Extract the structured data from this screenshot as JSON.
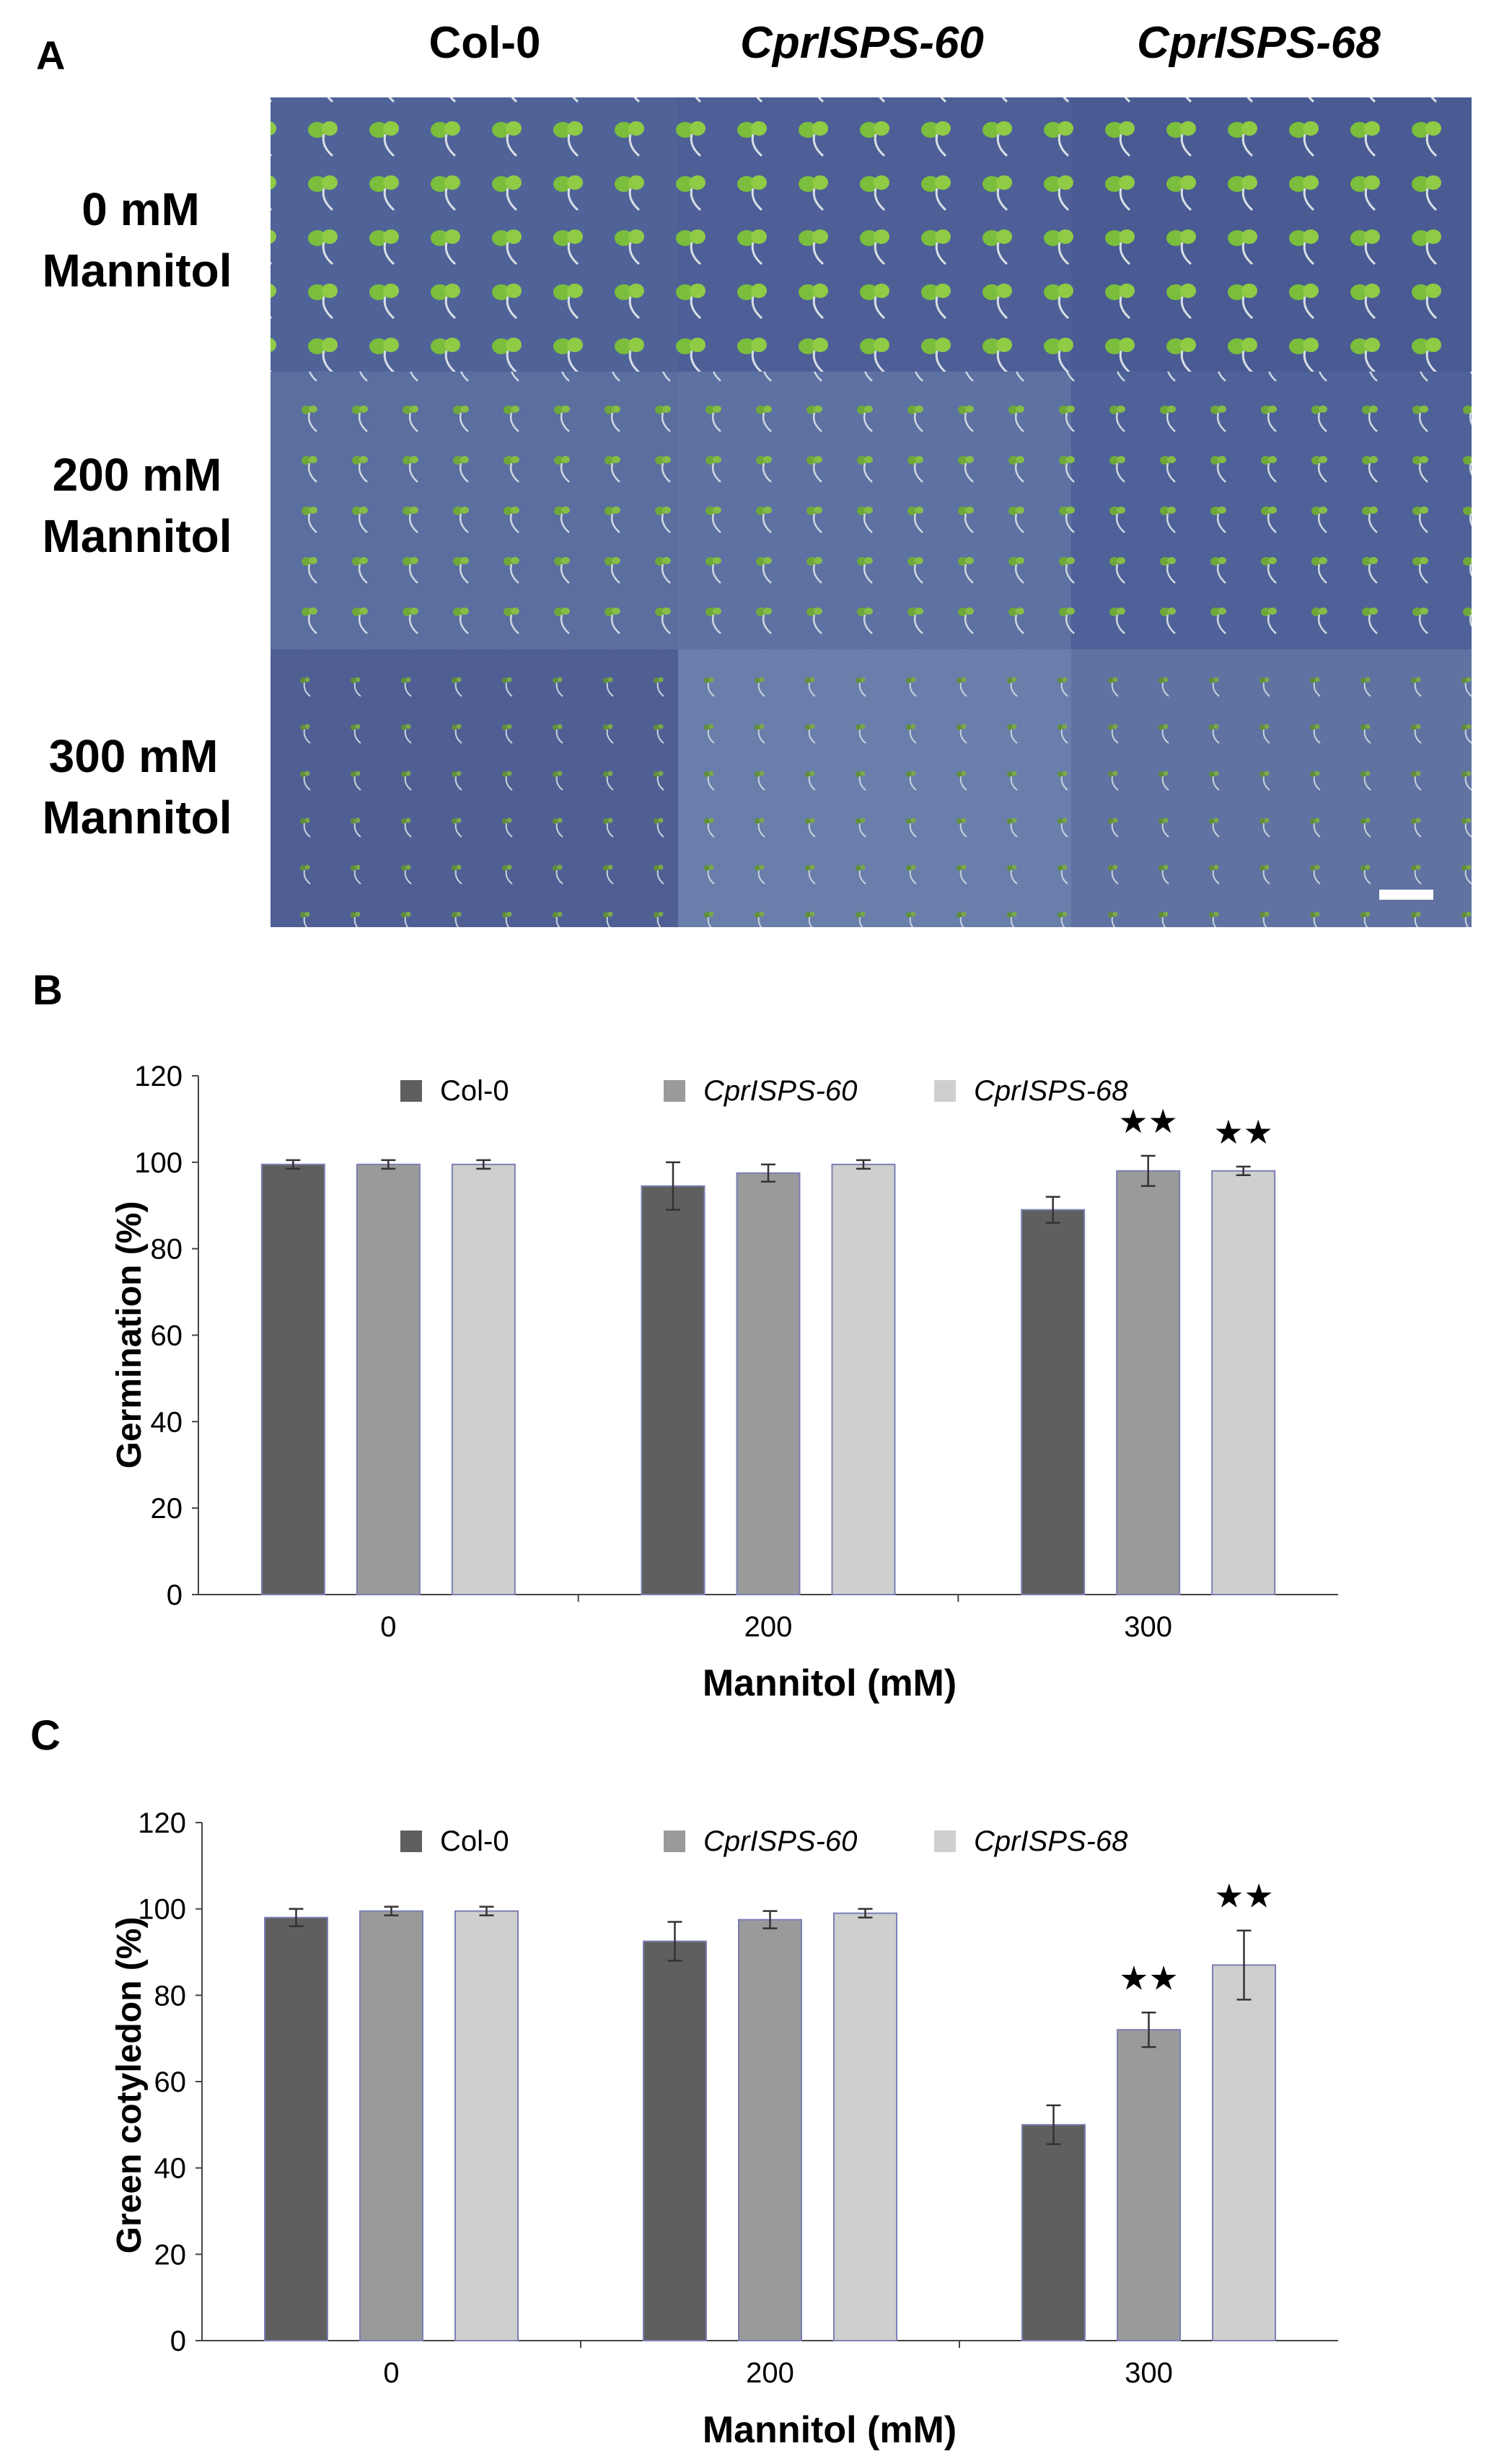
{
  "panel_a": {
    "label": "A",
    "columns": [
      "Col-0",
      "CprISPS-60",
      "CprISPS-68"
    ],
    "rows": [
      {
        "line1": "0 mM",
        "line2": "Mannitol"
      },
      {
        "line1": "200 mM",
        "line2": "Mannitol"
      },
      {
        "line1": "300 mM",
        "line2": "Mannitol"
      }
    ]
  },
  "colors": {
    "col0": "#5f5f5f",
    "cpr60": "#9a9a9a",
    "cpr68": "#cfcfcf",
    "bar_outline": "#7b7fb3",
    "plate_bg": "#506398"
  },
  "chart_data": [
    {
      "panel_label": "B",
      "type": "bar",
      "categories": [
        "0",
        "200",
        "300"
      ],
      "xlabel": "Mannitol (mM)",
      "ylabel": "Germination (%)",
      "ylim": [
        0,
        120
      ],
      "yticks": [
        "0",
        "20",
        "40",
        "60",
        "80",
        "100",
        "120"
      ],
      "legend": "top",
      "series": [
        {
          "name": "Col-0",
          "values": [
            99.5,
            94.5,
            89
          ],
          "errors": [
            1,
            5.5,
            3
          ]
        },
        {
          "name": "CprISPS-60",
          "values": [
            99.5,
            97.5,
            98
          ],
          "errors": [
            1,
            2,
            3.5
          ]
        },
        {
          "name": "CprISPS-68",
          "values": [
            99.5,
            99.5,
            98
          ],
          "errors": [
            1,
            1,
            1
          ]
        }
      ],
      "significance": [
        {
          "series": 1,
          "category": 2,
          "text": "★★"
        },
        {
          "series": 2,
          "category": 2,
          "text": "★★"
        }
      ]
    },
    {
      "panel_label": "C",
      "type": "bar",
      "categories": [
        "0",
        "200",
        "300"
      ],
      "xlabel": "Mannitol (mM)",
      "ylabel": "Green cotyledon (%)",
      "ylim": [
        0,
        120
      ],
      "yticks": [
        "0",
        "20",
        "40",
        "60",
        "80",
        "100",
        "120"
      ],
      "legend": "top",
      "series": [
        {
          "name": "Col-0",
          "values": [
            98,
            92.5,
            50
          ],
          "errors": [
            2,
            4.5,
            4.5
          ]
        },
        {
          "name": "CprISPS-60",
          "values": [
            99.5,
            97.5,
            72
          ],
          "errors": [
            1,
            2,
            4
          ]
        },
        {
          "name": "CprISPS-68",
          "values": [
            99.5,
            99,
            87
          ],
          "errors": [
            1,
            1,
            8
          ]
        }
      ],
      "significance": [
        {
          "series": 1,
          "category": 2,
          "text": "★★"
        },
        {
          "series": 2,
          "category": 2,
          "text": "★★"
        }
      ]
    }
  ]
}
